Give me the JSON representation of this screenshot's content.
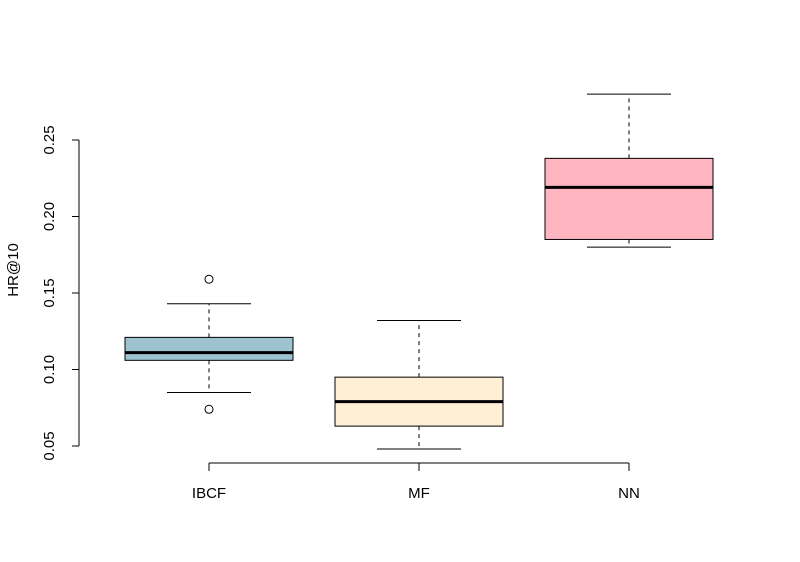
{
  "chart_data": {
    "type": "boxplot",
    "title": "",
    "xlabel": "",
    "ylabel": "HR@10",
    "ylim": [
      0.04,
      0.295
    ],
    "yticks": [
      0.05,
      0.1,
      0.15,
      0.2,
      0.25
    ],
    "ytick_labels": [
      "0.05",
      "0.10",
      "0.15",
      "0.20",
      "0.25"
    ],
    "categories": [
      "IBCF",
      "MF",
      "NN"
    ],
    "boxes": [
      {
        "category": "IBCF",
        "whisker_low": 0.085,
        "q1": 0.106,
        "median": 0.111,
        "q3": 0.121,
        "whisker_high": 0.143,
        "outliers": [
          0.074,
          0.159
        ],
        "color": "#9dc3d1"
      },
      {
        "category": "MF",
        "whisker_low": 0.048,
        "q1": 0.063,
        "median": 0.079,
        "q3": 0.095,
        "whisker_high": 0.132,
        "outliers": [],
        "color": "#ffefd5"
      },
      {
        "category": "NN",
        "whisker_low": 0.18,
        "q1": 0.185,
        "median": 0.219,
        "q3": 0.238,
        "whisker_high": 0.28,
        "outliers": [],
        "color": "#ffb6c1"
      }
    ],
    "grid": false,
    "legend": "none"
  }
}
